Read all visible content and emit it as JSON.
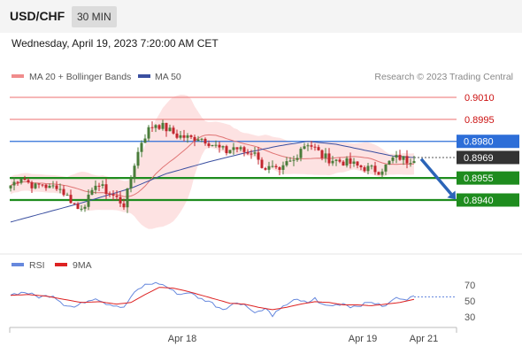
{
  "header": {
    "symbol": "USD/CHF",
    "timeframe": "30 MIN"
  },
  "date_line": "Wednesday, April 19, 2023 7:20:00 AM CET",
  "legend": {
    "bollinger": "MA 20 + Bollinger Bands",
    "ma50": "MA 50",
    "credit": "Research © 2023 Trading Central"
  },
  "rsi_legend": {
    "rsi": "RSI",
    "ma9": "9MA"
  },
  "colors": {
    "bull": "#4a7c3a",
    "bear": "#c2262e",
    "resistance": "#f08c8c",
    "pivot": "#2d6ed8",
    "support": "#1e8c1e",
    "last": "#333333",
    "band_fill": "#fde2e2",
    "ma50": "#3a4fa0",
    "ma20": "#e07575",
    "rsi": "#6688dd",
    "ma9": "#dd2222",
    "arrow": "#2b64b8"
  },
  "chart_data": [
    {
      "type": "candlestick",
      "title": "",
      "ylim": [
        0.8929,
        0.9021
      ],
      "x_ticks": [
        "Apr 18",
        "Apr 19",
        "Apr 21"
      ],
      "series_names": [
        "MA 20 + Bollinger Bands",
        "MA 50"
      ],
      "levels": [
        {
          "label": "0.9010",
          "value": 0.901,
          "kind": "resistance"
        },
        {
          "label": "0.8995",
          "value": 0.8995,
          "kind": "resistance"
        },
        {
          "label": "0.8980",
          "value": 0.898,
          "kind": "pivot"
        },
        {
          "label": "0.8969",
          "value": 0.8969,
          "kind": "last"
        },
        {
          "label": "0.8955",
          "value": 0.8955,
          "kind": "support"
        },
        {
          "label": "0.8940",
          "value": 0.894,
          "kind": "support"
        }
      ],
      "forecast_arrow": {
        "from": 0.8968,
        "to": 0.8941
      },
      "close_path": [
        [
          0,
          0.895
        ],
        [
          3,
          0.8956
        ],
        [
          5,
          0.8952
        ],
        [
          7,
          0.8949
        ],
        [
          9,
          0.8951
        ],
        [
          11,
          0.8948
        ],
        [
          13,
          0.895
        ],
        [
          15,
          0.8945
        ],
        [
          17,
          0.894
        ],
        [
          19,
          0.8934
        ],
        [
          21,
          0.8938
        ],
        [
          23,
          0.8944
        ],
        [
          24,
          0.8952
        ],
        [
          25,
          0.895
        ],
        [
          27,
          0.8946
        ],
        [
          30,
          0.8941
        ],
        [
          32,
          0.8937
        ],
        [
          33,
          0.8945
        ],
        [
          35,
          0.8965
        ],
        [
          37,
          0.898
        ],
        [
          39,
          0.8988
        ],
        [
          41,
          0.8992
        ],
        [
          43,
          0.899
        ],
        [
          45,
          0.8987
        ],
        [
          47,
          0.8984
        ],
        [
          49,
          0.8983
        ],
        [
          51,
          0.8982
        ],
        [
          53,
          0.8983
        ],
        [
          55,
          0.8981
        ],
        [
          57,
          0.8978
        ],
        [
          59,
          0.8975
        ],
        [
          61,
          0.8973
        ],
        [
          63,
          0.8976
        ],
        [
          65,
          0.8974
        ],
        [
          67,
          0.8972
        ],
        [
          69,
          0.8974
        ],
        [
          70,
          0.8966
        ],
        [
          72,
          0.8962
        ],
        [
          74,
          0.8961
        ],
        [
          76,
          0.8958
        ],
        [
          78,
          0.8965
        ],
        [
          80,
          0.8967
        ],
        [
          82,
          0.8976
        ],
        [
          84,
          0.8979
        ],
        [
          86,
          0.8975
        ],
        [
          88,
          0.897
        ],
        [
          90,
          0.8968
        ],
        [
          92,
          0.8967
        ],
        [
          94,
          0.8966
        ],
        [
          96,
          0.8965
        ],
        [
          98,
          0.8963
        ],
        [
          100,
          0.8962
        ],
        [
          102,
          0.8961
        ],
        [
          104,
          0.896
        ],
        [
          106,
          0.8963
        ],
        [
          108,
          0.8968
        ],
        [
          110,
          0.8969
        ],
        [
          112,
          0.8967
        ],
        [
          114,
          0.8969
        ]
      ],
      "candle_count": 115,
      "ma50_path": [
        [
          0,
          0.8925
        ],
        [
          20,
          0.8938
        ],
        [
          34,
          0.8948
        ],
        [
          44,
          0.8958
        ],
        [
          56,
          0.8966
        ],
        [
          66,
          0.8972
        ],
        [
          76,
          0.8977
        ],
        [
          84,
          0.898
        ],
        [
          92,
          0.8978
        ],
        [
          100,
          0.8974
        ],
        [
          108,
          0.897
        ],
        [
          114,
          0.8969
        ]
      ]
    },
    {
      "type": "line",
      "title": "",
      "ylim": [
        22,
        78
      ],
      "y_ticks": [
        70,
        50,
        30
      ],
      "series": [
        {
          "name": "RSI",
          "values": [
            [
              0,
              58
            ],
            [
              4,
              61
            ],
            [
              8,
              55
            ],
            [
              12,
              57
            ],
            [
              15,
              46
            ],
            [
              18,
              42
            ],
            [
              21,
              49
            ],
            [
              24,
              54
            ],
            [
              27,
              47
            ],
            [
              30,
              44
            ],
            [
              32,
              41
            ],
            [
              34,
              55
            ],
            [
              36,
              64
            ],
            [
              38,
              70
            ],
            [
              40,
              72
            ],
            [
              42,
              72
            ],
            [
              44,
              68
            ],
            [
              46,
              62
            ],
            [
              48,
              58
            ],
            [
              50,
              61
            ],
            [
              52,
              57
            ],
            [
              54,
              52
            ],
            [
              56,
              50
            ],
            [
              58,
              44
            ],
            [
              60,
              40
            ],
            [
              62,
              44
            ],
            [
              64,
              48
            ],
            [
              66,
              46
            ],
            [
              68,
              38
            ],
            [
              70,
              36
            ],
            [
              72,
              40
            ],
            [
              74,
              32
            ],
            [
              76,
              38
            ],
            [
              78,
              46
            ],
            [
              80,
              52
            ],
            [
              82,
              49
            ],
            [
              84,
              48
            ],
            [
              86,
              53
            ],
            [
              88,
              45
            ],
            [
              90,
              44
            ],
            [
              92,
              45
            ],
            [
              94,
              47
            ],
            [
              96,
              43
            ],
            [
              98,
              44
            ],
            [
              100,
              46
            ],
            [
              102,
              49
            ],
            [
              104,
              45
            ],
            [
              106,
              43
            ],
            [
              108,
              52
            ],
            [
              110,
              54
            ],
            [
              112,
              53
            ],
            [
              114,
              55
            ]
          ]
        },
        {
          "name": "9MA",
          "values": [
            [
              0,
              57
            ],
            [
              5,
              58
            ],
            [
              10,
              56
            ],
            [
              15,
              52
            ],
            [
              20,
              48
            ],
            [
              25,
              49
            ],
            [
              30,
              46
            ],
            [
              34,
              48
            ],
            [
              38,
              58
            ],
            [
              42,
              67
            ],
            [
              46,
              66
            ],
            [
              50,
              62
            ],
            [
              54,
              57
            ],
            [
              58,
              52
            ],
            [
              62,
              47
            ],
            [
              66,
              46
            ],
            [
              70,
              42
            ],
            [
              74,
              39
            ],
            [
              78,
              42
            ],
            [
              82,
              46
            ],
            [
              86,
              49
            ],
            [
              90,
              48
            ],
            [
              94,
              45
            ],
            [
              98,
              45
            ],
            [
              102,
              44
            ],
            [
              106,
              46
            ],
            [
              110,
              48
            ],
            [
              114,
              52
            ]
          ]
        }
      ]
    }
  ]
}
